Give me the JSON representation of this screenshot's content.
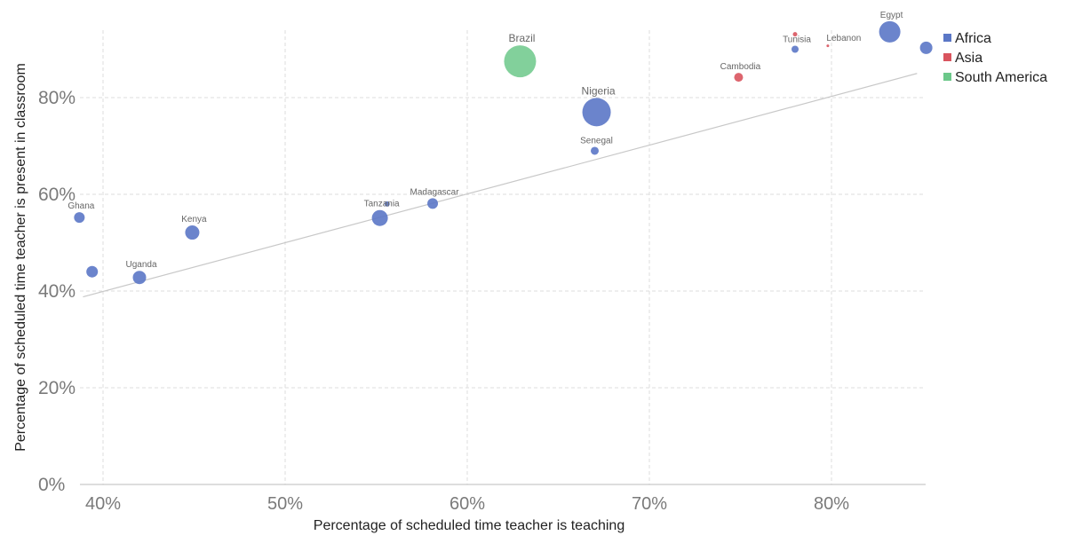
{
  "chart_data": {
    "type": "scatter",
    "title": "",
    "xlabel": "Percentage of scheduled time teacher is teaching",
    "ylabel": "Percentage of scheduled time teacher is present in classroom",
    "xlim": [
      38.7,
      85.2
    ],
    "ylim": [
      0,
      95
    ],
    "x_ticks": [
      40,
      50,
      60,
      70,
      80
    ],
    "x_tick_labels": [
      "40%",
      "50%",
      "60%",
      "70%",
      "80%"
    ],
    "y_ticks": [
      0,
      20,
      40,
      60,
      80
    ],
    "y_tick_labels": [
      "0%",
      "20%",
      "40%",
      "60%",
      "80%"
    ],
    "grid": true,
    "legend_position": "top-right",
    "legend": [
      {
        "name": "Africa",
        "color": "#5b77c6"
      },
      {
        "name": "Asia",
        "color": "#d9545e"
      },
      {
        "name": "South America",
        "color": "#6cc88a"
      }
    ],
    "trendline": {
      "x": [
        38.9,
        84.7
      ],
      "y": [
        38.8,
        85.0
      ]
    },
    "points": [
      {
        "label": "Ghana",
        "x": 38.7,
        "y": 55.2,
        "size": 6,
        "series": "Africa"
      },
      {
        "label": "",
        "x": 39.4,
        "y": 44.0,
        "size": 6.5,
        "series": "Africa"
      },
      {
        "label": "Uganda",
        "x": 42.0,
        "y": 42.8,
        "size": 7.5,
        "series": "Africa"
      },
      {
        "label": "Kenya",
        "x": 44.9,
        "y": 52.1,
        "size": 8,
        "series": "Africa"
      },
      {
        "label": "Tanzania",
        "x": 55.2,
        "y": 55.1,
        "size": 9,
        "series": "Africa"
      },
      {
        "label": "",
        "x": 55.6,
        "y": 58.0,
        "size": 3,
        "series": "Africa"
      },
      {
        "label": "Madagascar",
        "x": 58.1,
        "y": 58.1,
        "size": 6,
        "series": "Africa"
      },
      {
        "label": "Brazil",
        "x": 62.9,
        "y": 87.5,
        "size": 18,
        "series": "South America"
      },
      {
        "label": "Nigeria",
        "x": 67.1,
        "y": 77.0,
        "size": 16,
        "series": "Africa"
      },
      {
        "label": "Senegal",
        "x": 67.0,
        "y": 69.0,
        "size": 4.5,
        "series": "Africa"
      },
      {
        "label": "Cambodia",
        "x": 74.9,
        "y": 84.2,
        "size": 5,
        "series": "Asia"
      },
      {
        "label": "Tunisia",
        "x": 78.0,
        "y": 90.0,
        "size": 4,
        "series": "Africa"
      },
      {
        "label": "",
        "x": 78.0,
        "y": 93.1,
        "size": 2.5,
        "series": "Asia"
      },
      {
        "label": "Lebanon",
        "x": 79.8,
        "y": 90.7,
        "size": 1.5,
        "series": "Asia"
      },
      {
        "label": "Egypt",
        "x": 83.2,
        "y": 93.6,
        "size": 12,
        "series": "Africa"
      },
      {
        "label": "",
        "x": 85.2,
        "y": 90.3,
        "size": 7,
        "series": "Africa"
      }
    ]
  }
}
